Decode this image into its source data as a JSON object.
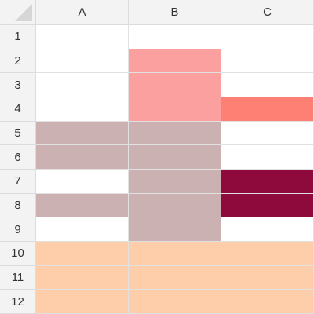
{
  "columns": [
    "A",
    "B",
    "C"
  ],
  "rows": [
    "1",
    "2",
    "3",
    "4",
    "5",
    "6",
    "7",
    "8",
    "9",
    "10",
    "11",
    "12"
  ],
  "colors": {
    "white": "#ffffff",
    "pink": "#fc9f9f",
    "salmon": "#fe7f73",
    "mauve": "#cbb1b1",
    "crimson": "#8e0a3d",
    "peach": "#fecda9"
  },
  "cells": [
    [
      "white",
      "white",
      "white"
    ],
    [
      "white",
      "pink",
      "white"
    ],
    [
      "white",
      "pink",
      "white"
    ],
    [
      "white",
      "pink",
      "salmon"
    ],
    [
      "mauve",
      "mauve",
      "white"
    ],
    [
      "mauve",
      "mauve",
      "white"
    ],
    [
      "white",
      "mauve",
      "crimson"
    ],
    [
      "mauve",
      "mauve",
      "crimson"
    ],
    [
      "white",
      "mauve",
      "white"
    ],
    [
      "peach",
      "peach",
      "peach"
    ],
    [
      "peach",
      "peach",
      "peach"
    ],
    [
      "peach",
      "peach",
      "peach"
    ]
  ]
}
